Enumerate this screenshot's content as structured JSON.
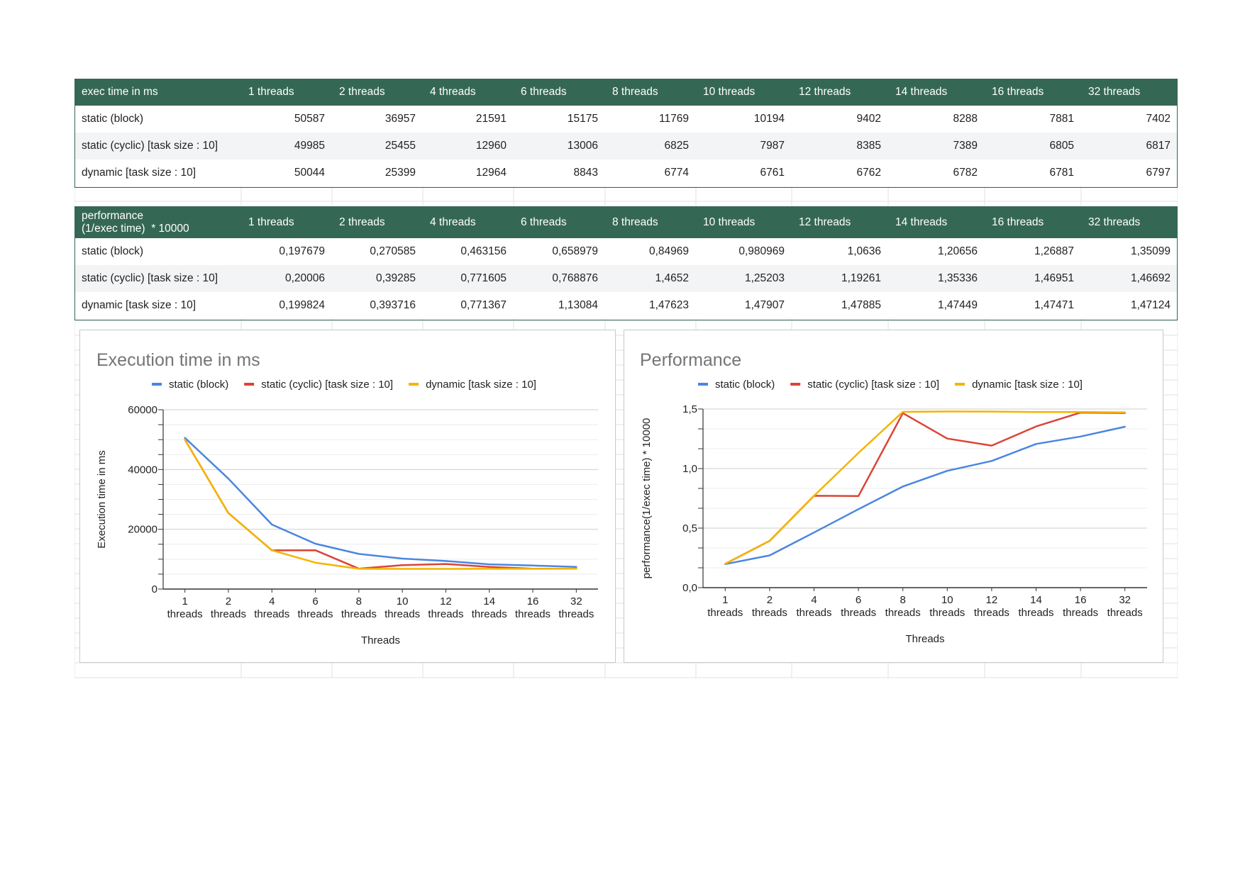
{
  "table_exec": {
    "header": [
      "exec time in ms",
      "1 threads",
      "2 threads",
      "4 threads",
      "6 threads",
      "8 threads",
      "10 threads",
      "12 threads",
      "14 threads",
      "16 threads",
      "32 threads"
    ],
    "rows": [
      [
        "static (block)",
        "50587",
        "36957",
        "21591",
        "15175",
        "11769",
        "10194",
        "9402",
        "8288",
        "7881",
        "7402"
      ],
      [
        "static (cyclic) [task size : 10]",
        "49985",
        "25455",
        "12960",
        "13006",
        "6825",
        "7987",
        "8385",
        "7389",
        "6805",
        "6817"
      ],
      [
        "dynamic [task size : 10]",
        "50044",
        "25399",
        "12964",
        "8843",
        "6774",
        "6761",
        "6762",
        "6782",
        "6781",
        "6797"
      ]
    ]
  },
  "table_perf": {
    "header": [
      "performance\n(1/exec time)  * 10000",
      "1 threads",
      "2 threads",
      "4 threads",
      "6 threads",
      "8 threads",
      "10 threads",
      "12 threads",
      "14 threads",
      "16 threads",
      "32 threads"
    ],
    "rows": [
      [
        "static (block)",
        "0,197679",
        "0,270585",
        "0,463156",
        "0,658979",
        "0,84969",
        "0,980969",
        "1,0636",
        "1,20656",
        "1,26887",
        "1,35099"
      ],
      [
        "static (cyclic) [task size : 10]",
        "0,20006",
        "0,39285",
        "0,771605",
        "0,768876",
        "1,4652",
        "1,25203",
        "1,19261",
        "1,35336",
        "1,46951",
        "1,46692"
      ],
      [
        "dynamic [task size : 10]",
        "0,199824",
        "0,393716",
        "0,771367",
        "1,13084",
        "1,47623",
        "1,47907",
        "1,47885",
        "1,47449",
        "1,47471",
        "1,47124"
      ]
    ]
  },
  "chart_data": [
    {
      "type": "line",
      "title": "Execution time in ms",
      "xlabel": "Threads",
      "ylabel": "Execution time in ms",
      "categories": [
        "1\nthreads",
        "2\nthreads",
        "4\nthreads",
        "6\nthreads",
        "8\nthreads",
        "10\nthreads",
        "12\nthreads",
        "14\nthreads",
        "16\nthreads",
        "32\nthreads"
      ],
      "ylim": [
        0,
        60000
      ],
      "yticks": [
        0,
        20000,
        40000,
        60000
      ],
      "ytick_labels": [
        "0",
        "20000",
        "40000",
        "60000"
      ],
      "grid": true,
      "legend": "top",
      "series": [
        {
          "name": "static (block)",
          "color": "#4a86e0",
          "values": [
            50587,
            36957,
            21591,
            15175,
            11769,
            10194,
            9402,
            8288,
            7881,
            7402
          ]
        },
        {
          "name": "static (cyclic) [task size : 10]",
          "color": "#db4437",
          "values": [
            49985,
            25455,
            12960,
            13006,
            6825,
            7987,
            8385,
            7389,
            6805,
            6817
          ]
        },
        {
          "name": "dynamic [task size : 10]",
          "color": "#f4b400",
          "values": [
            50044,
            25399,
            12964,
            8843,
            6774,
            6761,
            6762,
            6782,
            6781,
            6797
          ]
        }
      ]
    },
    {
      "type": "line",
      "title": "Performance",
      "xlabel": "Threads",
      "ylabel": "performance(1/exec time)  * 10000",
      "categories": [
        "1\nthreads",
        "2\nthreads",
        "4\nthreads",
        "6\nthreads",
        "8\nthreads",
        "10\nthreads",
        "12\nthreads",
        "14\nthreads",
        "16\nthreads",
        "32\nthreads"
      ],
      "ylim": [
        0,
        1.5
      ],
      "yticks": [
        0,
        0.5,
        1.0,
        1.5
      ],
      "ytick_labels": [
        "0,0",
        "0,5",
        "1,0",
        "1,5"
      ],
      "grid": true,
      "legend": "top",
      "series": [
        {
          "name": "static (block)",
          "color": "#4a86e0",
          "values": [
            0.197679,
            0.270585,
            0.463156,
            0.658979,
            0.84969,
            0.980969,
            1.0636,
            1.20656,
            1.26887,
            1.35099
          ]
        },
        {
          "name": "static (cyclic) [task size : 10]",
          "color": "#db4437",
          "values": [
            0.20006,
            0.39285,
            0.771605,
            0.768876,
            1.4652,
            1.25203,
            1.19261,
            1.35336,
            1.46951,
            1.46692
          ]
        },
        {
          "name": "dynamic [task size : 10]",
          "color": "#f4b400",
          "values": [
            0.199824,
            0.393716,
            0.771367,
            1.13084,
            1.47623,
            1.47907,
            1.47885,
            1.47449,
            1.47471,
            1.47124
          ]
        }
      ]
    }
  ]
}
